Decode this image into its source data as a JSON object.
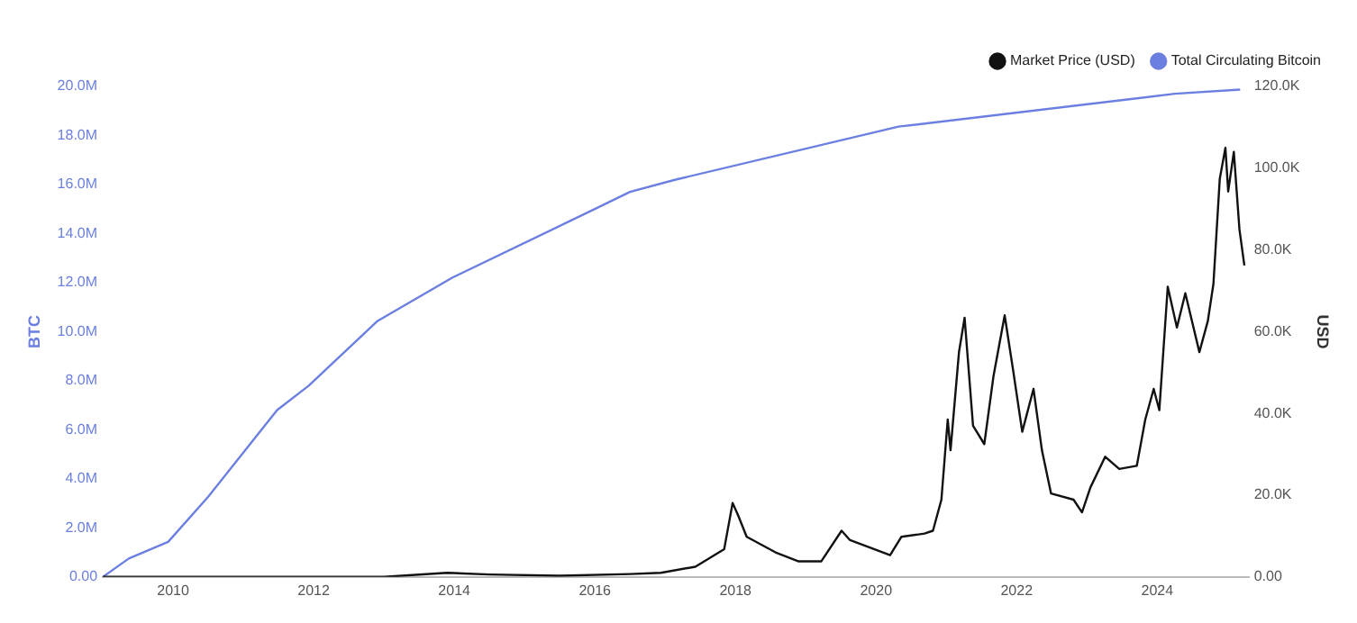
{
  "chart_data": {
    "type": "line",
    "ylabel": "BTC",
    "y2label": "USD",
    "legend": "top right",
    "marker": "none",
    "grid": false,
    "xlim": [
      2009,
      2025.3
    ],
    "xticks": [
      2010,
      2012,
      2014,
      2016,
      2018,
      2020,
      2022,
      2024
    ],
    "ylim": [
      0,
      20000000
    ],
    "yticks": [
      {
        "value": 0,
        "label": "0.00"
      },
      {
        "value": 2000000,
        "label": "2.0M"
      },
      {
        "value": 4000000,
        "label": "4.0M"
      },
      {
        "value": 6000000,
        "label": "6.0M"
      },
      {
        "value": 8000000,
        "label": "8.0M"
      },
      {
        "value": 10000000,
        "label": "10.0M"
      },
      {
        "value": 12000000,
        "label": "12.0M"
      },
      {
        "value": 14000000,
        "label": "14.0M"
      },
      {
        "value": 16000000,
        "label": "16.0M"
      },
      {
        "value": 18000000,
        "label": "18.0M"
      },
      {
        "value": 20000000,
        "label": "20.0M"
      }
    ],
    "y2lim": [
      0,
      120000
    ],
    "y2ticks": [
      {
        "value": 0,
        "label": "0.00"
      },
      {
        "value": 20000,
        "label": "20.0K"
      },
      {
        "value": 40000,
        "label": "40.0K"
      },
      {
        "value": 60000,
        "label": "60.0K"
      },
      {
        "value": 80000,
        "label": "80.0K"
      },
      {
        "value": 100000,
        "label": "100.0K"
      },
      {
        "value": 120000,
        "label": "120.0K"
      }
    ],
    "series": [
      {
        "name": "Market Price (USD)",
        "color": "#111111",
        "axis": "y2",
        "x": [
          2009,
          2010.5,
          2013,
          2013.9,
          2014.5,
          2015.5,
          2016.5,
          2016.94,
          2017.43,
          2017.84,
          2017.96,
          2018.04,
          2018.16,
          2018.57,
          2018.9,
          2019.22,
          2019.51,
          2019.63,
          2020.2,
          2020.36,
          2020.69,
          2020.81,
          2020.93,
          2021.02,
          2021.06,
          2021.18,
          2021.26,
          2021.38,
          2021.54,
          2021.67,
          2021.83,
          2021.95,
          2022.08,
          2022.24,
          2022.36,
          2022.49,
          2022.81,
          2022.93,
          2023.05,
          2023.26,
          2023.46,
          2023.71,
          2023.83,
          2023.95,
          2024.03,
          2024.15,
          2024.28,
          2024.4,
          2024.6,
          2024.72,
          2024.8,
          2024.89,
          2024.97,
          2025.01,
          2025.09,
          2025.17,
          2025.24
        ],
        "values": [
          0,
          0,
          0,
          1000,
          600,
          300,
          700,
          1000,
          2500,
          6800,
          18100,
          15000,
          9800,
          6000,
          3800,
          3800,
          11300,
          9000,
          5300,
          9800,
          10600,
          11300,
          18900,
          38500,
          31000,
          55000,
          63400,
          37000,
          32500,
          49000,
          64000,
          50600,
          35500,
          46000,
          31000,
          20400,
          18900,
          15800,
          21900,
          29400,
          26400,
          27200,
          38500,
          46000,
          40800,
          71000,
          61000,
          69400,
          55000,
          62600,
          71700,
          97400,
          105000,
          94300,
          104000,
          85000,
          76200
        ]
      },
      {
        "name": "Total Circulating Bitcoin",
        "color": "#6b7fe0",
        "x": [
          2009,
          2009.37,
          2009.93,
          2010.5,
          2011.48,
          2011.93,
          2012.91,
          2013.97,
          2016,
          2016.5,
          2017.15,
          2020.32,
          2024.25,
          2025.18
        ],
        "values": [
          0,
          750000,
          1430000,
          3270000,
          6800000,
          7800000,
          10440000,
          12200000,
          15000000,
          15700000,
          16200000,
          18360000,
          19700000,
          19870000
        ]
      }
    ]
  }
}
